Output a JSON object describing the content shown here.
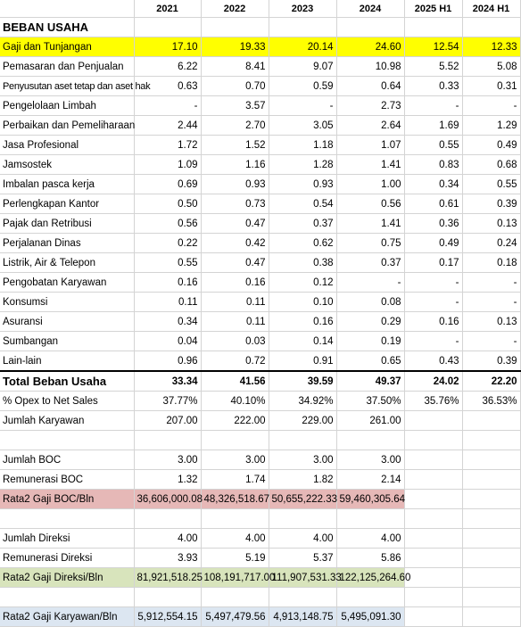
{
  "columns": [
    "",
    "2021",
    "2022",
    "2023",
    "2024",
    "2025 H1",
    "2024 H1"
  ],
  "title": "BEBAN USAHA",
  "expenses": [
    {
      "label": "Gaji dan Tunjangan",
      "values": [
        "17.10",
        "19.33",
        "20.14",
        "24.60",
        "12.54",
        "12.33"
      ]
    },
    {
      "label": "Pemasaran dan Penjualan",
      "values": [
        "6.22",
        "8.41",
        "9.07",
        "10.98",
        "5.52",
        "5.08"
      ]
    },
    {
      "label": "Penyusutan aset tetap dan aset hak",
      "values": [
        "0.63",
        "0.70",
        "0.59",
        "0.64",
        "0.33",
        "0.31"
      ]
    },
    {
      "label": "Pengelolaan Limbah",
      "values": [
        "-",
        "3.57",
        "-",
        "2.73",
        "-",
        "-"
      ]
    },
    {
      "label": "Perbaikan dan Pemeliharaan",
      "values": [
        "2.44",
        "2.70",
        "3.05",
        "2.64",
        "1.69",
        "1.29"
      ]
    },
    {
      "label": "Jasa Profesional",
      "values": [
        "1.72",
        "1.52",
        "1.18",
        "1.07",
        "0.55",
        "0.49"
      ]
    },
    {
      "label": "Jamsostek",
      "values": [
        "1.09",
        "1.16",
        "1.28",
        "1.41",
        "0.83",
        "0.68"
      ]
    },
    {
      "label": "Imbalan pasca kerja",
      "values": [
        "0.69",
        "0.93",
        "0.93",
        "1.00",
        "0.34",
        "0.55"
      ]
    },
    {
      "label": "Perlengkapan Kantor",
      "values": [
        "0.50",
        "0.73",
        "0.54",
        "0.56",
        "0.61",
        "0.39"
      ]
    },
    {
      "label": "Pajak dan Retribusi",
      "values": [
        "0.56",
        "0.47",
        "0.37",
        "1.41",
        "0.36",
        "0.13"
      ]
    },
    {
      "label": "Perjalanan Dinas",
      "values": [
        "0.22",
        "0.42",
        "0.62",
        "0.75",
        "0.49",
        "0.24"
      ]
    },
    {
      "label": "Listrik, Air & Telepon",
      "values": [
        "0.55",
        "0.47",
        "0.38",
        "0.37",
        "0.17",
        "0.18"
      ]
    },
    {
      "label": "Pengobatan Karyawan",
      "values": [
        "0.16",
        "0.16",
        "0.12",
        "-",
        "-",
        "-"
      ]
    },
    {
      "label": "Konsumsi",
      "values": [
        "0.11",
        "0.11",
        "0.10",
        "0.08",
        "-",
        "-"
      ]
    },
    {
      "label": "Asuransi",
      "values": [
        "0.34",
        "0.11",
        "0.16",
        "0.29",
        "0.16",
        "0.13"
      ]
    },
    {
      "label": "Sumbangan",
      "values": [
        "0.04",
        "0.03",
        "0.14",
        "0.19",
        "-",
        "-"
      ]
    },
    {
      "label": "Lain-lain",
      "values": [
        "0.96",
        "0.72",
        "0.91",
        "0.65",
        "0.43",
        "0.39"
      ]
    }
  ],
  "total": {
    "label": "Total Beban Usaha",
    "values": [
      "33.34",
      "41.56",
      "39.59",
      "49.37",
      "24.02",
      "22.20"
    ]
  },
  "opex": {
    "label": "% Opex to Net Sales",
    "values": [
      "37.77%",
      "40.10%",
      "34.92%",
      "37.50%",
      "35.76%",
      "36.53%"
    ]
  },
  "karyawan": {
    "label": "Jumlah Karyawan",
    "values": [
      "207.00",
      "222.00",
      "229.00",
      "261.00",
      "",
      ""
    ]
  },
  "boc": {
    "jumlah": {
      "label": "Jumlah BOC",
      "values": [
        "3.00",
        "3.00",
        "3.00",
        "3.00",
        "",
        ""
      ]
    },
    "remunerasi": {
      "label": "Remunerasi BOC",
      "values": [
        "1.32",
        "1.74",
        "1.82",
        "2.14",
        "",
        ""
      ]
    },
    "rata2": {
      "label": "Rata2 Gaji BOC/Bln",
      "values": [
        "36,606,000.08",
        "48,326,518.67",
        "50,655,222.33",
        "59,460,305.64",
        "",
        ""
      ]
    }
  },
  "direksi": {
    "jumlah": {
      "label": "Jumlah Direksi",
      "values": [
        "4.00",
        "4.00",
        "4.00",
        "4.00",
        "",
        ""
      ]
    },
    "remunerasi": {
      "label": "Remunerasi Direksi",
      "values": [
        "3.93",
        "5.19",
        "5.37",
        "5.86",
        "",
        ""
      ]
    },
    "rata2": {
      "label": "Rata2 Gaji Direksi/Bln",
      "values": [
        "81,921,518.25",
        "108,191,717.00",
        "111,907,531.33",
        "122,125,264.60",
        "",
        ""
      ]
    }
  },
  "karyawan_gaji": {
    "label": "Rata2 Gaji Karyawan/Bln",
    "values": [
      "5,912,554.15",
      "5,497,479.56",
      "4,913,148.75",
      "5,495,091.30",
      "",
      ""
    ]
  }
}
